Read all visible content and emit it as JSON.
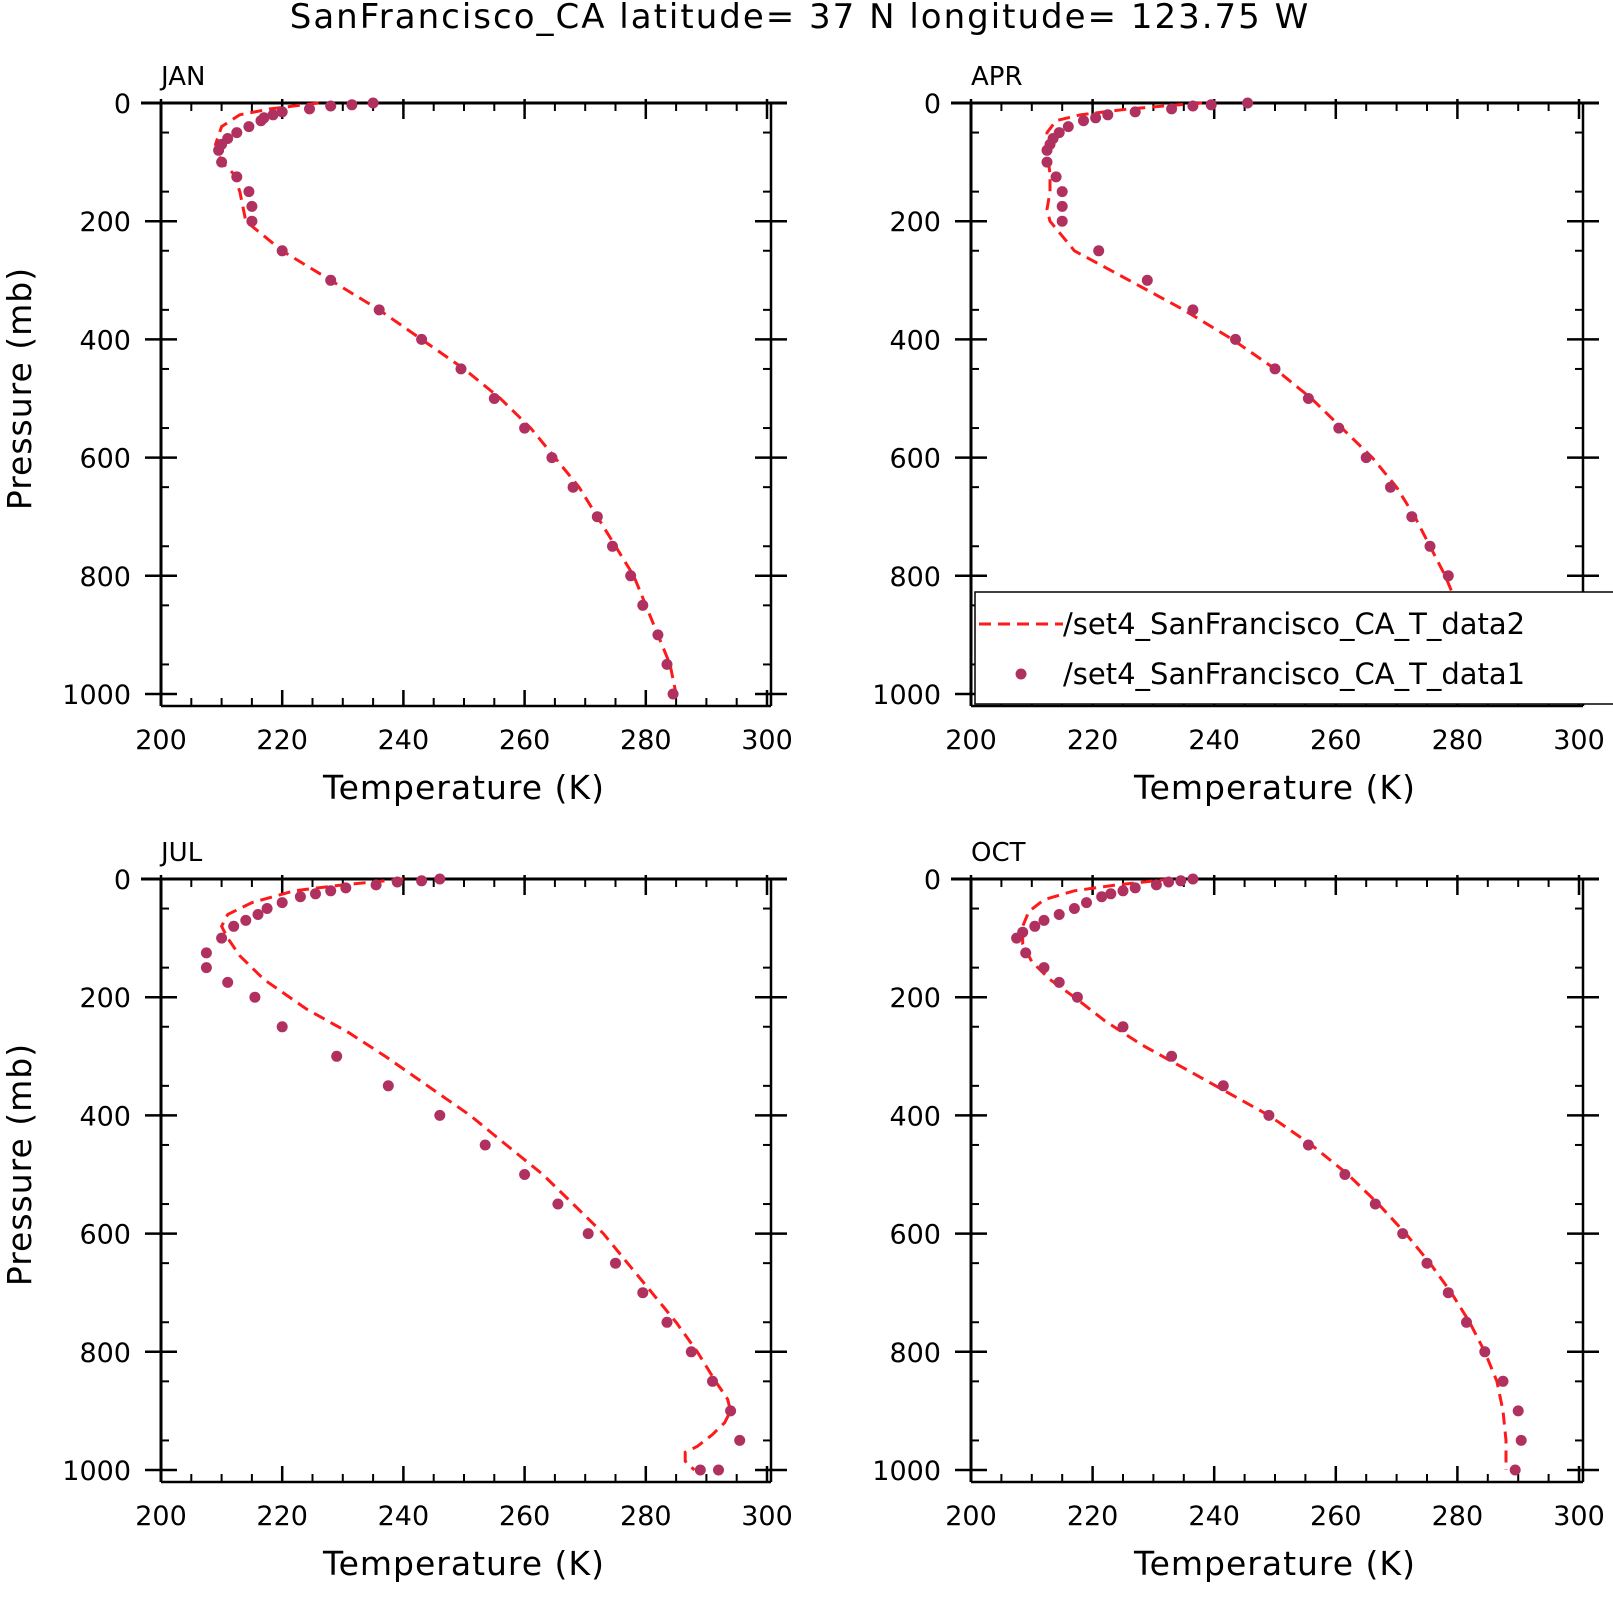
{
  "figure": {
    "title": "SanFrancisco_CA  latitude= 37 N longitude= 123.75 W",
    "colors": {
      "model_line": "#ff1a1a",
      "obs_marker": "#b03060",
      "axis": "#000000"
    },
    "legend": {
      "placement": "lower-right (inside APR panel)",
      "entries": [
        {
          "label": "/set4_SanFrancisco_CA_T_data2",
          "style": "dashed-line"
        },
        {
          "label": "/set4_SanFrancisco_CA_T_data1",
          "style": "dot"
        }
      ]
    }
  },
  "chart_data": [
    {
      "type": "scatter",
      "panel": "JAN",
      "xlabel": "Temperature (K)",
      "ylabel": "Pressure (mb)",
      "xlim": [
        200,
        300
      ],
      "ylim": [
        1000,
        0
      ],
      "xticks": [
        200,
        220,
        240,
        260,
        280,
        300
      ],
      "yticks": [
        0,
        200,
        400,
        600,
        800,
        1000
      ],
      "series": [
        {
          "name": "/set4_SanFrancisco_CA_T_data2",
          "style": "line",
          "x": [
            226,
            218,
            213,
            210,
            209,
            210,
            212,
            213,
            214,
            220,
            228,
            236,
            243,
            250,
            256,
            261,
            265,
            269,
            272,
            275,
            278,
            280,
            282,
            284,
            285
          ],
          "y": [
            0,
            10,
            20,
            40,
            70,
            100,
            120,
            150,
            200,
            250,
            300,
            350,
            400,
            450,
            500,
            550,
            600,
            650,
            700,
            750,
            800,
            850,
            900,
            950,
            1000
          ]
        },
        {
          "name": "/set4_SanFrancisco_CA_T_data1",
          "style": "dot",
          "x": [
            235,
            231.5,
            228,
            224.5,
            220,
            218.5,
            217,
            216.5,
            214.5,
            212.5,
            211,
            210,
            209.5,
            210,
            212.5,
            214.5,
            215,
            215,
            220,
            228,
            236,
            243,
            249.5,
            255,
            260,
            264.5,
            268,
            272,
            274.5,
            277.5,
            279.5,
            282,
            283.5,
            284.5
          ],
          "y": [
            0,
            3,
            5,
            10,
            15,
            20,
            25,
            30,
            40,
            50,
            60,
            70,
            80,
            100,
            125,
            150,
            175,
            200,
            250,
            300,
            350,
            400,
            450,
            500,
            550,
            600,
            650,
            700,
            750,
            800,
            850,
            900,
            950,
            1000
          ]
        }
      ]
    },
    {
      "type": "scatter",
      "panel": "APR",
      "xlabel": "Temperature (K)",
      "ylabel": "",
      "xlim": [
        200,
        300
      ],
      "ylim": [
        1000,
        0
      ],
      "xticks": [
        200,
        220,
        240,
        260,
        280,
        300
      ],
      "yticks": [
        0,
        200,
        400,
        600,
        800,
        1000
      ],
      "series": [
        {
          "name": "/set4_SanFrancisco_CA_T_data2",
          "style": "line",
          "x": [
            238,
            226,
            218,
            214,
            212.5,
            212.5,
            213,
            213,
            212.5,
            213,
            217,
            226,
            235,
            243,
            250,
            256,
            261,
            266,
            270,
            273,
            275.5,
            278,
            280,
            282,
            284,
            285
          ],
          "y": [
            0,
            10,
            20,
            30,
            50,
            80,
            120,
            150,
            180,
            200,
            250,
            300,
            350,
            400,
            450,
            500,
            550,
            600,
            650,
            700,
            750,
            800,
            850,
            900,
            950,
            1000
          ]
        },
        {
          "name": "/set4_SanFrancisco_CA_T_data1",
          "style": "dot",
          "x": [
            245.5,
            239.5,
            236.5,
            233,
            227,
            222.5,
            220.5,
            218.5,
            216,
            214.5,
            213.5,
            213,
            212.5,
            212.5,
            214,
            215,
            215,
            215,
            221,
            229,
            236.5,
            243.5,
            250,
            255.5,
            260.5,
            265,
            269,
            272.5,
            275.5,
            278.5,
            281,
            283,
            284.5,
            285.5
          ],
          "y": [
            0,
            3,
            5,
            10,
            15,
            20,
            25,
            30,
            40,
            50,
            60,
            70,
            80,
            100,
            125,
            150,
            175,
            200,
            250,
            300,
            350,
            400,
            450,
            500,
            550,
            600,
            650,
            700,
            750,
            800,
            850,
            900,
            950,
            1000
          ]
        }
      ]
    },
    {
      "type": "scatter",
      "panel": "JUL",
      "xlabel": "Temperature (K)",
      "ylabel": "Pressure (mb)",
      "xlim": [
        200,
        300
      ],
      "ylim": [
        1000,
        0
      ],
      "xticks": [
        200,
        220,
        240,
        260,
        280,
        300
      ],
      "yticks": [
        0,
        200,
        400,
        600,
        800,
        1000
      ],
      "series": [
        {
          "name": "/set4_SanFrancisco_CA_T_data2",
          "style": "line",
          "x": [
            240,
            230,
            222,
            215,
            211,
            210,
            211,
            213,
            217,
            224,
            231,
            237,
            244,
            251,
            257,
            263,
            268,
            273,
            277,
            281,
            285,
            288.5,
            291.5,
            293.5,
            294,
            293,
            291,
            288.5,
            286.5,
            286.5,
            288
          ],
          "y": [
            0,
            10,
            20,
            40,
            60,
            80,
            100,
            130,
            170,
            220,
            260,
            300,
            350,
            400,
            450,
            500,
            550,
            600,
            650,
            700,
            750,
            800,
            850,
            880,
            900,
            920,
            940,
            960,
            970,
            985,
            1000
          ]
        },
        {
          "name": "/set4_SanFrancisco_CA_T_data1",
          "style": "dot",
          "x": [
            246,
            243,
            239,
            235.5,
            230.5,
            228,
            225.5,
            223,
            220,
            217.5,
            216,
            214,
            212,
            210,
            207.5,
            207.5,
            211,
            215.5,
            220,
            229,
            237.5,
            246,
            253.5,
            260,
            265.5,
            270.5,
            275,
            279.5,
            283.5,
            287.5,
            291,
            294,
            295.5,
            292,
            289
          ],
          "y": [
            0,
            3,
            5,
            10,
            15,
            20,
            25,
            30,
            40,
            50,
            60,
            70,
            80,
            100,
            125,
            150,
            175,
            200,
            250,
            300,
            350,
            400,
            450,
            500,
            550,
            600,
            650,
            700,
            750,
            800,
            850,
            900,
            950,
            1000,
            1000
          ]
        }
      ]
    },
    {
      "type": "scatter",
      "panel": "OCT",
      "xlabel": "Temperature (K)",
      "ylabel": "",
      "xlim": [
        200,
        300
      ],
      "ylim": [
        1000,
        0
      ],
      "xticks": [
        200,
        220,
        240,
        260,
        280,
        300
      ],
      "yticks": [
        0,
        200,
        400,
        600,
        800,
        1000
      ],
      "series": [
        {
          "name": "/set4_SanFrancisco_CA_T_data2",
          "style": "line",
          "x": [
            233,
            224,
            217,
            212,
            209.5,
            208.5,
            208.5,
            210,
            213,
            217,
            222,
            228,
            235,
            242,
            249,
            256,
            262,
            267,
            271.5,
            275.5,
            279,
            282,
            284.5,
            286.5,
            287.5,
            288,
            288
          ],
          "y": [
            0,
            10,
            20,
            35,
            55,
            80,
            110,
            140,
            170,
            200,
            240,
            280,
            320,
            360,
            400,
            450,
            500,
            550,
            600,
            650,
            700,
            750,
            800,
            850,
            900,
            950,
            1000
          ]
        },
        {
          "name": "/set4_SanFrancisco_CA_T_data1",
          "style": "dot",
          "x": [
            236.5,
            234.5,
            232.5,
            230.5,
            227,
            225,
            223,
            221.5,
            219,
            217,
            214.5,
            212,
            210.5,
            208.5,
            207.5,
            209,
            212,
            214.5,
            217.5,
            225,
            233,
            241.5,
            249,
            255.5,
            261.5,
            266.5,
            271,
            275,
            278.5,
            281.5,
            284.5,
            287.5,
            290,
            290.5,
            289.5
          ],
          "y": [
            0,
            3,
            5,
            10,
            15,
            20,
            25,
            30,
            40,
            50,
            60,
            70,
            80,
            90,
            100,
            125,
            150,
            175,
            200,
            250,
            300,
            350,
            400,
            450,
            500,
            550,
            600,
            650,
            700,
            750,
            800,
            850,
            900,
            950,
            1000
          ]
        }
      ]
    }
  ]
}
